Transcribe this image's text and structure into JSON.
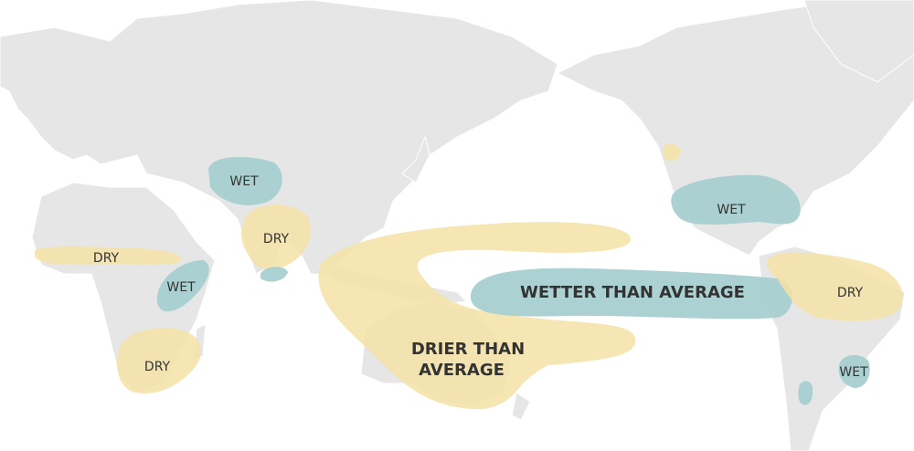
{
  "colors": {
    "wet": "#a6cfd0",
    "dry": "#f5e2a6",
    "land": "#e6e6e7",
    "ocean": "#ffffff",
    "text": "#333333"
  },
  "labels": {
    "wetter_than_average": "WETTER THAN AVERAGE",
    "drier_than_average_1": "DRIER THAN",
    "drier_than_average_2": "AVERAGE",
    "wet_central_asia": "WET",
    "dry_india": "DRY",
    "dry_west_africa": "DRY",
    "wet_east_africa": "WET",
    "dry_southern_africa": "DRY",
    "wet_north_america": "WET",
    "dry_south_america": "DRY",
    "wet_south_america": "WET"
  }
}
